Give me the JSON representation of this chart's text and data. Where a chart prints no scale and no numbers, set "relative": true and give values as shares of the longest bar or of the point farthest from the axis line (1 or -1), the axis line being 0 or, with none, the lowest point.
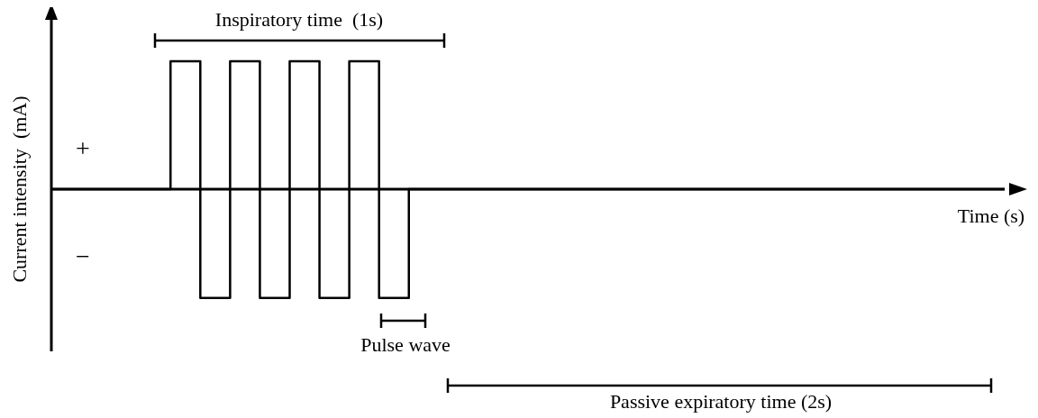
{
  "chart_data": {
    "type": "step",
    "relative": true,
    "xlabel": "Time (s)",
    "ylabel": "Current intensity  (mA)",
    "annotations": [
      "Inspiratory time  (1s)",
      "Pulse wave",
      "Passive expiratory time (2s)",
      "+",
      "−"
    ],
    "categories": [
      null,
      null,
      null,
      null,
      null,
      null,
      null,
      null,
      null,
      null,
      null,
      null,
      null,
      null,
      null,
      null,
      null,
      null,
      null,
      null,
      null,
      null,
      null,
      null,
      null,
      null,
      null,
      null,
      null,
      null,
      null,
      null,
      null
    ],
    "series": [
      {
        "color": "#000000",
        "values": [
          0,
          0,
          0,
          0,
          1,
          -0.85,
          1,
          -0.85,
          1,
          -0.85,
          1,
          -0.85,
          0,
          0,
          0,
          0,
          0,
          0,
          0,
          0,
          0,
          0,
          0,
          0,
          0,
          0,
          0,
          0,
          0,
          0,
          0,
          0,
          0
        ]
      }
    ],
    "marker": "none",
    "line_style": "solid",
    "grid": false,
    "legend": false
  }
}
